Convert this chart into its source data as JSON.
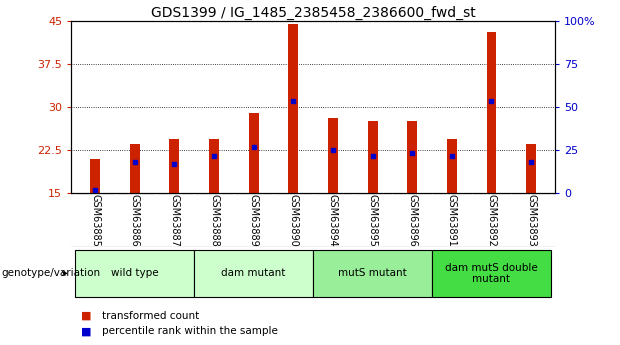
{
  "title": "GDS1399 / IG_1485_2385458_2386600_fwd_st",
  "samples": [
    "GSM63885",
    "GSM63886",
    "GSM63887",
    "GSM63888",
    "GSM63889",
    "GSM63890",
    "GSM63894",
    "GSM63895",
    "GSM63896",
    "GSM63891",
    "GSM63892",
    "GSM63893"
  ],
  "bar_values": [
    21.0,
    23.5,
    24.5,
    24.5,
    29.0,
    44.5,
    28.0,
    27.5,
    27.5,
    24.5,
    43.0,
    23.5
  ],
  "blue_values": [
    15.6,
    20.5,
    20.0,
    21.5,
    23.0,
    31.0,
    22.5,
    21.5,
    22.0,
    21.5,
    31.0,
    20.5
  ],
  "ymin": 15,
  "ymax": 45,
  "yright_min": 0,
  "yright_max": 100,
  "yticks_left": [
    15,
    22.5,
    30,
    37.5,
    45
  ],
  "ytick_labels_left": [
    "15",
    "22.5",
    "30",
    "37.5",
    "45"
  ],
  "yticks_right": [
    0,
    25,
    50,
    75,
    100
  ],
  "ytick_labels_right": [
    "0",
    "25",
    "50",
    "75",
    "100%"
  ],
  "bar_color": "#cc2200",
  "dot_color": "#0000cc",
  "groups": [
    {
      "label": "wild type",
      "start": 0,
      "end": 3,
      "color": "#ccffcc"
    },
    {
      "label": "dam mutant",
      "start": 3,
      "end": 6,
      "color": "#ccffcc"
    },
    {
      "label": "mutS mutant",
      "start": 6,
      "end": 9,
      "color": "#99ee99"
    },
    {
      "label": "dam mutS double\nmutant",
      "start": 9,
      "end": 12,
      "color": "#44dd44"
    }
  ],
  "group_label": "genotype/variation",
  "legend_items": [
    {
      "label": "transformed count",
      "color": "#cc2200"
    },
    {
      "label": "percentile rank within the sample",
      "color": "#0000cc"
    }
  ],
  "bar_width": 0.25,
  "background_color": "#ffffff",
  "plot_bg_color": "#ffffff",
  "tick_area_color": "#cccccc"
}
